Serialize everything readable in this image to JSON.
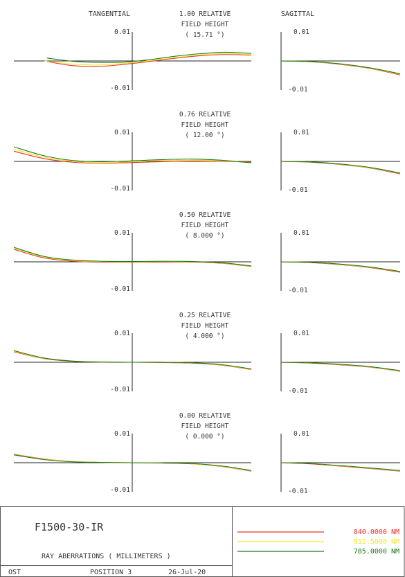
{
  "headers": {
    "tangential": "TANGENTIAL",
    "sagittal": "SAGITTAL"
  },
  "colors": {
    "red": "#e8322a",
    "yellow": "#f2e62c",
    "green": "#1a7a12",
    "axis": "#222222",
    "frame": "#555555"
  },
  "field_label_line2": "FIELD HEIGHT",
  "chart_data": {
    "type": "line",
    "units": "MILLIMETERS",
    "ylim": [
      -0.01,
      0.01
    ],
    "xlim": [
      -1,
      1
    ],
    "tick_top": "0.01",
    "tick_bottom": "-0.01",
    "series_names": [
      "840.0000 NM",
      "812.5000 NM",
      "785.0000 NM"
    ],
    "x": [
      -1.0,
      -0.75,
      -0.5,
      -0.25,
      0.0,
      0.25,
      0.5,
      0.75,
      1.0
    ],
    "fields": [
      {
        "relative": "1.00 RELATIVE",
        "angle": "( 15.71 °)",
        "tangential": [
          {
            "name": "840.0000 NM",
            "x_range": [
              -0.72,
              1.0
            ],
            "y": [
              -0.0002,
              -0.0016,
              -0.0019,
              -0.0012,
              -0.0002,
              0.0009,
              0.0018,
              0.0022,
              0.002
            ]
          },
          {
            "name": "812.5000 NM",
            "x_range": [
              -0.74,
              1.0
            ],
            "y": [
              0.0,
              -0.001,
              -0.0014,
              -0.0009,
              0.0,
              0.0011,
              0.0021,
              0.0025,
              0.0022
            ]
          },
          {
            "name": "785.0000 NM",
            "x_range": [
              -0.72,
              1.0
            ],
            "y": [
              0.001,
              -0.0001,
              -0.0005,
              -0.0004,
              0.0004,
              0.0016,
              0.0025,
              0.003,
              0.0026
            ]
          }
        ],
        "sagittal": [
          {
            "name": "840.0000 NM",
            "x_range": [
              0.0,
              1.0
            ],
            "y": [
              0.0,
              -0.0003,
              -0.0012,
              -0.0026,
              -0.0048
            ]
          },
          {
            "name": "812.5000 NM",
            "x_range": [
              0.0,
              1.0
            ],
            "y": [
              0.0,
              -0.0003,
              -0.0011,
              -0.0025,
              -0.0046
            ]
          },
          {
            "name": "785.0000 NM",
            "x_range": [
              0.0,
              1.0
            ],
            "y": [
              0.0,
              -0.0002,
              -0.001,
              -0.0024,
              -0.0044
            ]
          }
        ]
      },
      {
        "relative": "0.76 RELATIVE",
        "angle": "( 12.00 °)",
        "tangential": [
          {
            "name": "840.0000 NM",
            "x_range": [
              -1.0,
              1.0
            ],
            "y": [
              0.0035,
              0.001,
              -0.0003,
              -0.0006,
              -0.0004,
              -0.0001,
              0.0001,
              0.0,
              -0.0002
            ]
          },
          {
            "name": "812.5000 NM",
            "x_range": [
              -1.0,
              1.0
            ],
            "y": [
              0.0042,
              0.0015,
              0.0,
              -0.0004,
              -0.0001,
              0.0003,
              0.0004,
              0.0002,
              -0.0004
            ]
          },
          {
            "name": "785.0000 NM",
            "x_range": [
              -1.0,
              1.0
            ],
            "y": [
              0.005,
              0.002,
              0.0003,
              -0.0001,
              0.0002,
              0.0006,
              0.0008,
              0.0004,
              -0.0005
            ]
          }
        ],
        "sagittal": [
          {
            "name": "840.0000 NM",
            "x_range": [
              0.0,
              1.0
            ],
            "y": [
              0.0,
              -0.0003,
              -0.0011,
              -0.0023,
              -0.0043
            ]
          },
          {
            "name": "812.5000 NM",
            "x_range": [
              0.0,
              1.0
            ],
            "y": [
              0.0,
              -0.0002,
              -0.001,
              -0.0022,
              -0.0041
            ]
          },
          {
            "name": "785.0000 NM",
            "x_range": [
              0.0,
              1.0
            ],
            "y": [
              0.0,
              -0.0002,
              -0.0009,
              -0.0021,
              -0.004
            ]
          }
        ]
      },
      {
        "relative": "0.50 RELATIVE",
        "angle": "( 8.000 °)",
        "tangential": [
          {
            "name": "840.0000 NM",
            "x_range": [
              -1.0,
              1.0
            ],
            "y": [
              0.0043,
              0.0014,
              0.0002,
              -0.0001,
              -0.0001,
              -0.0001,
              -0.0001,
              -0.0005,
              -0.0016
            ]
          },
          {
            "name": "812.5000 NM",
            "x_range": [
              -1.0,
              1.0
            ],
            "y": [
              0.0047,
              0.0017,
              0.0004,
              0.0001,
              0.0,
              0.0001,
              0.0,
              -0.0004,
              -0.0015
            ]
          },
          {
            "name": "785.0000 NM",
            "x_range": [
              -1.0,
              1.0
            ],
            "y": [
              0.005,
              0.0019,
              0.0006,
              0.0002,
              0.0001,
              0.0002,
              0.0001,
              -0.0003,
              -0.0014
            ]
          }
        ],
        "sagittal": [
          {
            "name": "840.0000 NM",
            "x_range": [
              0.0,
              1.0
            ],
            "y": [
              0.0,
              -0.0003,
              -0.001,
              -0.002,
              -0.0036
            ]
          },
          {
            "name": "812.5000 NM",
            "x_range": [
              0.0,
              1.0
            ],
            "y": [
              0.0,
              -0.0002,
              -0.0009,
              -0.0019,
              -0.0034
            ]
          },
          {
            "name": "785.0000 NM",
            "x_range": [
              0.0,
              1.0
            ],
            "y": [
              0.0,
              -0.0002,
              -0.0008,
              -0.0018,
              -0.0033
            ]
          }
        ]
      },
      {
        "relative": "0.25 RELATIVE",
        "angle": "( 4.000 °)",
        "tangential": [
          {
            "name": "840.0000 NM",
            "x_range": [
              -1.0,
              1.0
            ],
            "y": [
              0.0036,
              0.0013,
              0.0003,
              0.0,
              0.0,
              -0.0001,
              -0.0003,
              -0.001,
              -0.0025
            ]
          },
          {
            "name": "812.5000 NM",
            "x_range": [
              -1.0,
              1.0
            ],
            "y": [
              0.0038,
              0.0014,
              0.0004,
              0.0001,
              0.0,
              0.0,
              -0.0002,
              -0.0009,
              -0.0024
            ]
          },
          {
            "name": "785.0000 NM",
            "x_range": [
              -1.0,
              1.0
            ],
            "y": [
              0.004,
              0.0015,
              0.0004,
              0.0001,
              0.0,
              0.0,
              -0.0002,
              -0.0008,
              -0.0023
            ]
          }
        ],
        "sagittal": [
          {
            "name": "840.0000 NM",
            "x_range": [
              0.0,
              1.0
            ],
            "y": [
              0.0,
              -0.0003,
              -0.0009,
              -0.0017,
              -0.0031
            ]
          },
          {
            "name": "812.5000 NM",
            "x_range": [
              0.0,
              1.0
            ],
            "y": [
              0.0,
              -0.0002,
              -0.0008,
              -0.0016,
              -0.003
            ]
          },
          {
            "name": "785.0000 NM",
            "x_range": [
              0.0,
              1.0
            ],
            "y": [
              0.0,
              -0.0002,
              -0.0007,
              -0.0015,
              -0.0029
            ]
          }
        ]
      },
      {
        "relative": "0.00 RELATIVE",
        "angle": "( 0.000 °)",
        "tangential": [
          {
            "name": "840.0000 NM",
            "x_range": [
              -1.0,
              1.0
            ],
            "y": [
              0.0029,
              0.0013,
              0.0004,
              0.0001,
              0.0,
              -0.0001,
              -0.0004,
              -0.0013,
              -0.0029
            ]
          },
          {
            "name": "812.5000 NM",
            "x_range": [
              -1.0,
              1.0
            ],
            "y": [
              0.0028,
              0.0012,
              0.0004,
              0.0001,
              0.0,
              -0.0001,
              -0.0004,
              -0.0012,
              -0.0028
            ]
          },
          {
            "name": "785.0000 NM",
            "x_range": [
              -1.0,
              1.0
            ],
            "y": [
              0.0027,
              0.0011,
              0.0003,
              0.0001,
              0.0,
              -0.0001,
              -0.0003,
              -0.0011,
              -0.0027
            ]
          }
        ],
        "sagittal": [
          {
            "name": "840.0000 NM",
            "x_range": [
              0.0,
              1.0
            ],
            "y": [
              0.0,
              -0.0004,
              -0.0012,
              -0.002,
              -0.0029
            ]
          },
          {
            "name": "812.5000 NM",
            "x_range": [
              0.0,
              1.0
            ],
            "y": [
              0.0,
              -0.0003,
              -0.0011,
              -0.0019,
              -0.0028
            ]
          },
          {
            "name": "785.0000 NM",
            "x_range": [
              0.0,
              1.0
            ],
            "y": [
              0.0,
              -0.0003,
              -0.001,
              -0.0018,
              -0.0027
            ]
          }
        ]
      }
    ]
  },
  "title_block": {
    "lens": "F1500-30-IR",
    "caption": "RAY ABERRATIONS ( MILLIMETERS )",
    "footer_left": "OST",
    "position": "POSITION 3",
    "date": "26-Jul-20",
    "legend": [
      {
        "label": "840.0000 NM",
        "color": "#e8322a"
      },
      {
        "label": "812.5000 NM",
        "color": "#f2e62c"
      },
      {
        "label": "785.0000 NM",
        "color": "#1a7a12"
      }
    ]
  }
}
